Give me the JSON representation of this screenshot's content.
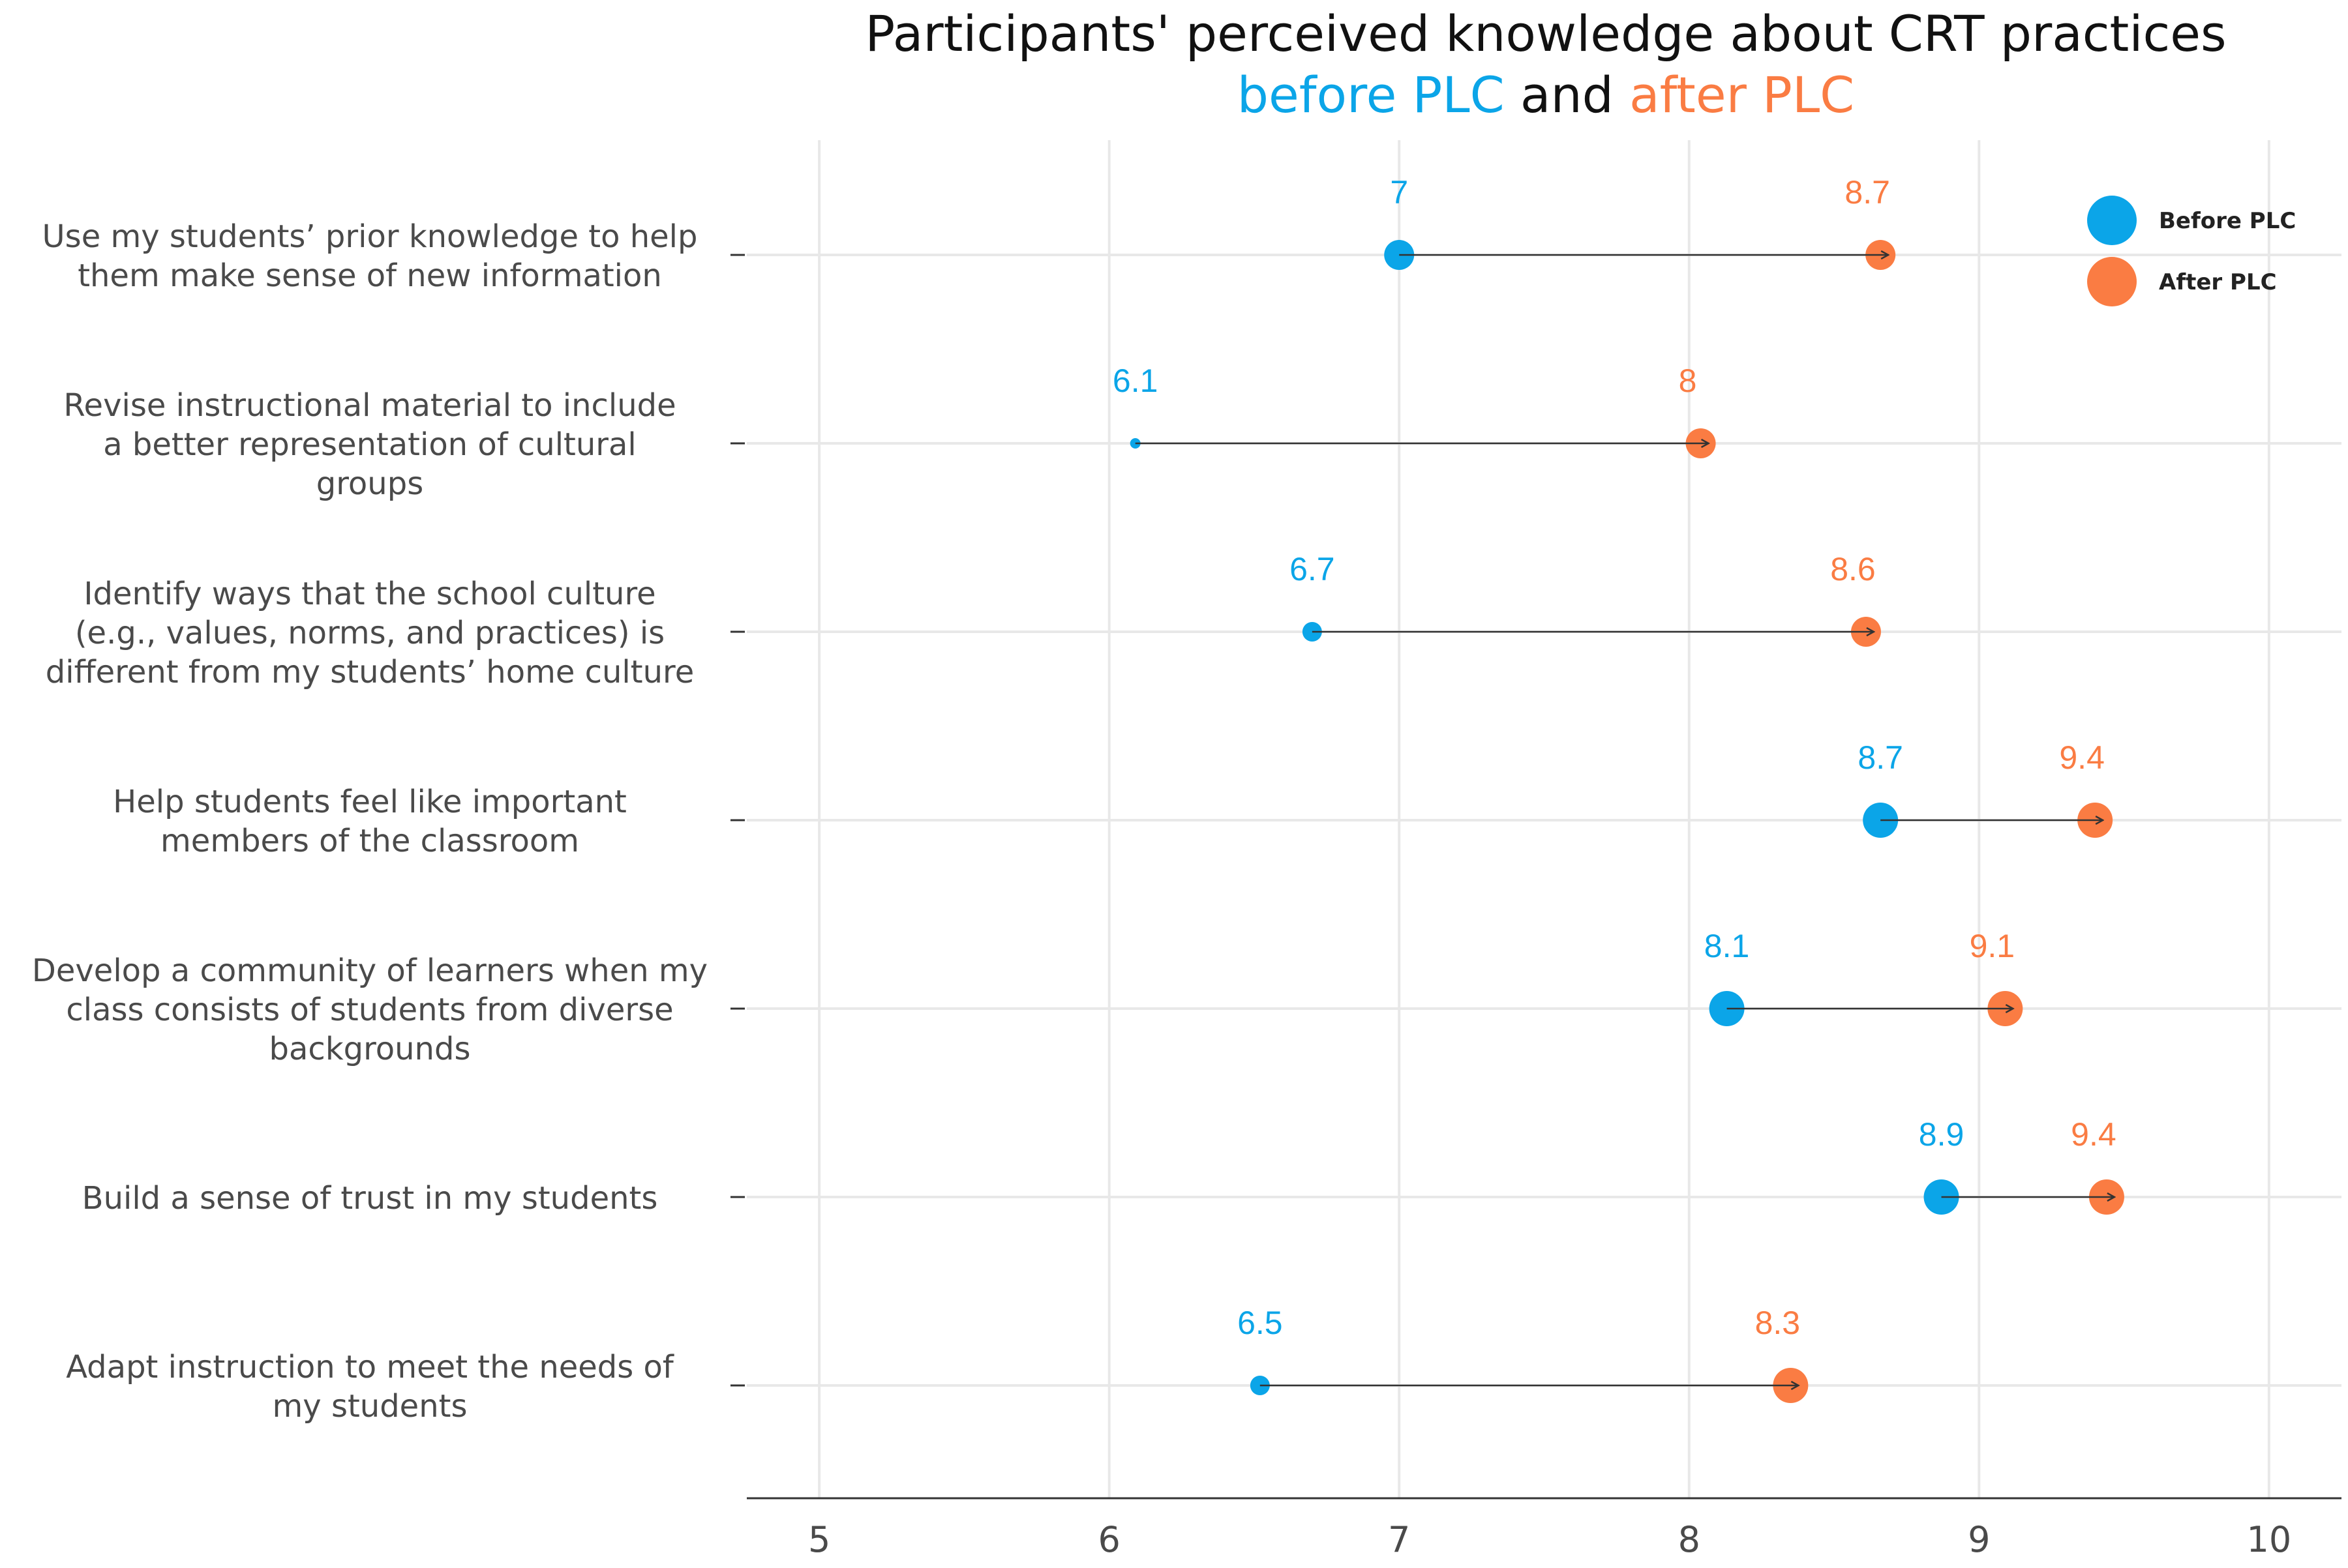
{
  "chart_data": {
    "type": "dumbbell",
    "title": "Participants' perceived knowledge about CRT practices",
    "subtitle": {
      "before_text": "before PLC",
      "and_text": "and",
      "after_text": "after PLC"
    },
    "colors": {
      "before": "#0ba5e8",
      "after": "#fa7c43",
      "grid": "#e8e8e8",
      "arrow": "#333333",
      "axis": "#333333"
    },
    "xlim": [
      4.75,
      10.25
    ],
    "xticks": [
      "5",
      "6",
      "7",
      "8",
      "9",
      "10"
    ],
    "legend": {
      "position": "top-right",
      "before_label": "Before PLC",
      "after_label": "After PLC"
    },
    "categories": [
      {
        "label_lines": [
          "Use my students’ prior knowledge to help",
          "them make sense of new information"
        ],
        "before": 7.0,
        "before_label": "7",
        "after": 8.66,
        "after_label": "8.7",
        "before_size": "medium",
        "after_size": "medium"
      },
      {
        "label_lines": [
          "Revise instructional material to include",
          "a better representation of cultural",
          "groups"
        ],
        "before": 6.09,
        "before_label": "6.1",
        "after": 8.04,
        "after_label": "8",
        "before_size": "tiny",
        "after_size": "medium"
      },
      {
        "label_lines": [
          "Identify ways that the school culture",
          "(e.g., values, norms, and practices) is",
          "different from my students’ home culture"
        ],
        "before": 6.7,
        "before_label": "6.7",
        "after": 8.61,
        "after_label": "8.6",
        "before_size": "small",
        "after_size": "medium"
      },
      {
        "label_lines": [
          "Help students feel like important",
          "members of the classroom"
        ],
        "before": 8.66,
        "before_label": "8.7",
        "after": 9.4,
        "after_label": "9.4",
        "before_size": "large",
        "after_size": "large"
      },
      {
        "label_lines": [
          "Develop a community of learners when my",
          "class consists of students from diverse",
          "backgrounds"
        ],
        "before": 8.13,
        "before_label": "8.1",
        "after": 9.09,
        "after_label": "9.1",
        "before_size": "large",
        "after_size": "large"
      },
      {
        "label_lines": [
          "Build a sense of trust in my students"
        ],
        "before": 8.87,
        "before_label": "8.9",
        "after": 9.44,
        "after_label": "9.4",
        "before_size": "large",
        "after_size": "large"
      },
      {
        "label_lines": [
          "Adapt instruction to meet the needs of",
          "my students"
        ],
        "before": 6.52,
        "before_label": "6.5",
        "after": 8.35,
        "after_label": "8.3",
        "before_size": "small",
        "after_size": "large"
      }
    ]
  }
}
